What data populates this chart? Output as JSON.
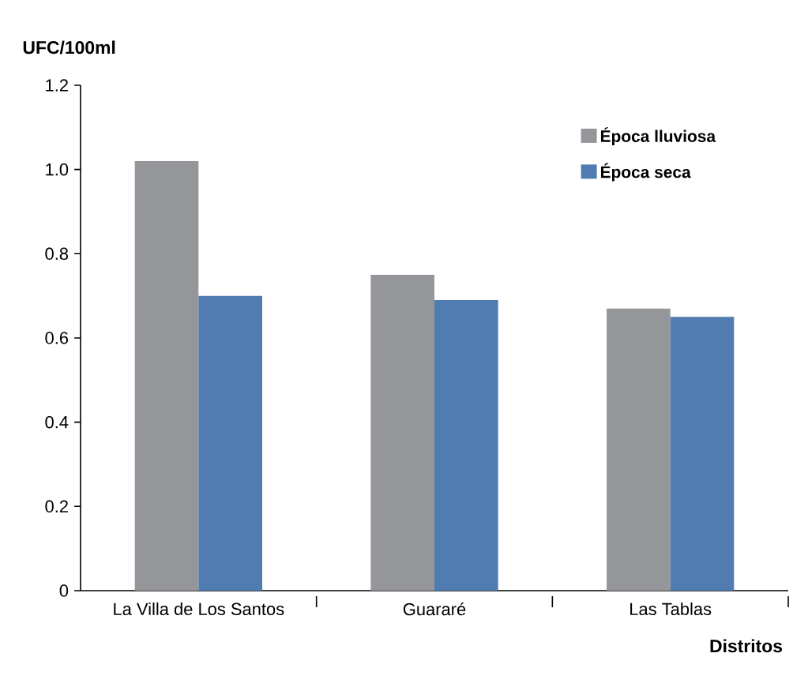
{
  "chart_data": {
    "type": "bar",
    "xlabel": "Distritos",
    "ylabel": "UFC/100ml",
    "categories": [
      "La Villa de Los Santos",
      "Guararé",
      "Las Tablas"
    ],
    "series": [
      {
        "name": "Época lluviosa",
        "color": "#959699",
        "values": [
          1.02,
          0.75,
          0.67
        ]
      },
      {
        "name": "Época seca",
        "color": "#507cb2",
        "values": [
          0.7,
          0.69,
          0.65
        ]
      }
    ],
    "ylim": [
      0,
      1.2
    ],
    "yticks": [
      {
        "value": 0,
        "label": "0"
      },
      {
        "value": 0.2,
        "label": "0.2"
      },
      {
        "value": 0.4,
        "label": "0.4"
      },
      {
        "value": 0.6,
        "label": "0.6"
      },
      {
        "value": 0.8,
        "label": "0.8"
      },
      {
        "value": 1.0,
        "label": "1.0"
      },
      {
        "value": 1.2,
        "label": "1.2"
      }
    ],
    "legend": "top right",
    "grid": false
  }
}
